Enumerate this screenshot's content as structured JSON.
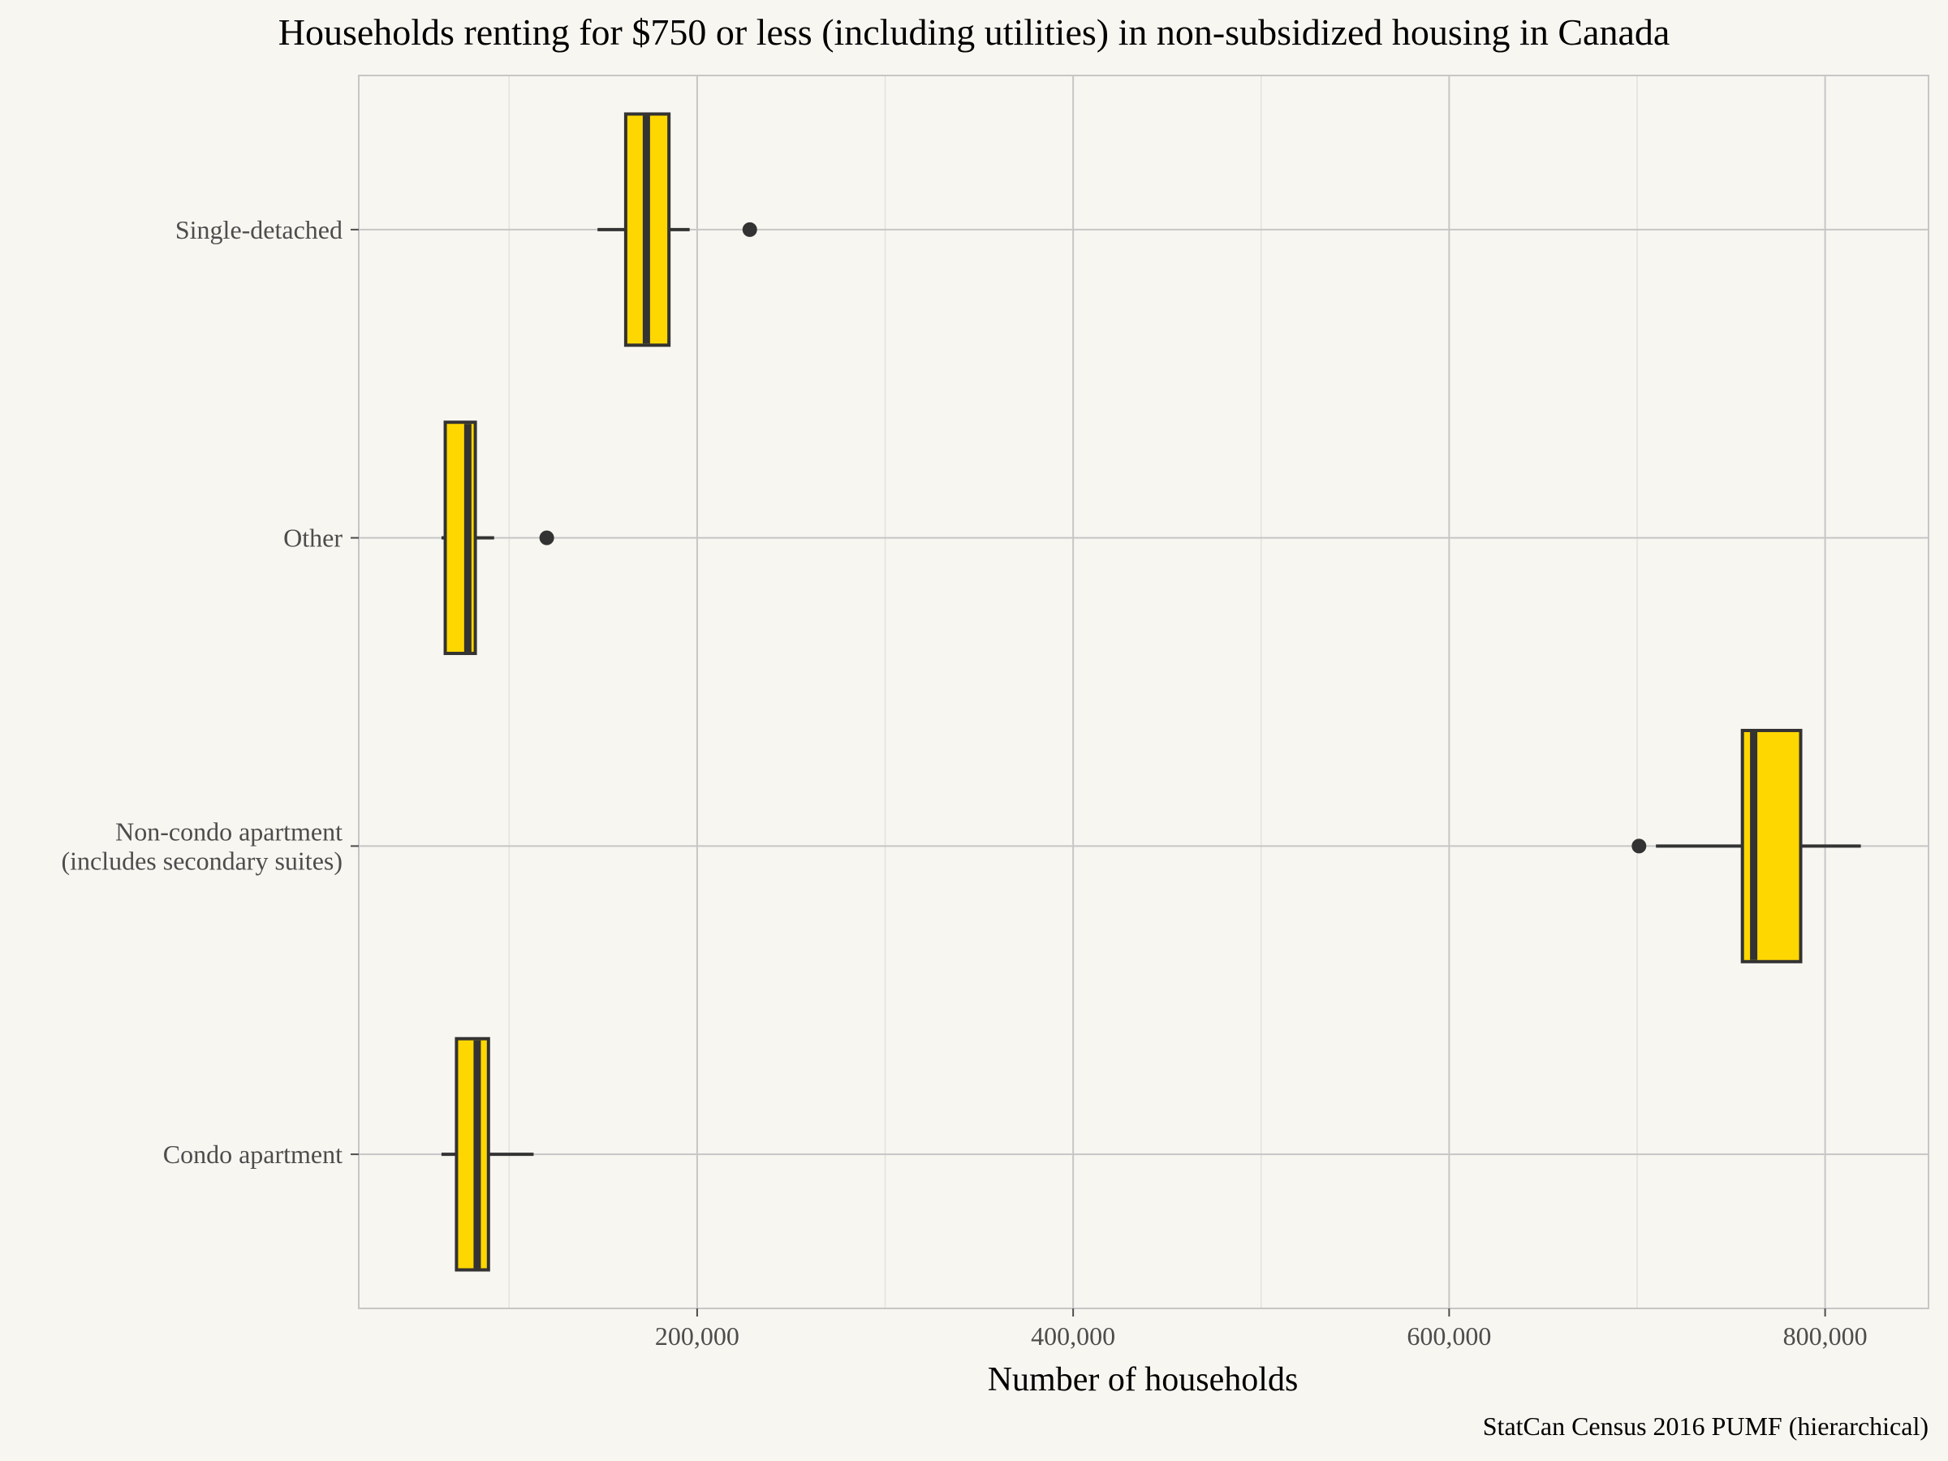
{
  "chart_data": {
    "type": "boxplot",
    "orientation": "horizontal",
    "title": "Households renting for $750 or less (including utilities) in non-subsidized housing in Canada",
    "xlabel": "Number of households",
    "ylabel": "",
    "caption": "StatCan Census 2016 PUMF (hierarchical)",
    "xlim": [
      20000,
      855000
    ],
    "x_ticks": [
      200000,
      400000,
      600000,
      800000
    ],
    "x_tick_labels": [
      "200,000",
      "400,000",
      "600,000",
      "800,000"
    ],
    "x_minor_ticks": [
      100000,
      300000,
      500000,
      700000
    ],
    "grid": true,
    "categories": [
      "Condo apartment",
      "Non-condo apartment\n(includes secondary suites)",
      "Other",
      "Single-detached"
    ],
    "boxes": [
      {
        "category": "Condo apartment",
        "whisker_low": 64000,
        "q1": 72000,
        "median": 83000,
        "q3": 89000,
        "whisker_high": 113000,
        "outliers": []
      },
      {
        "category": "Non-condo apartment\n(includes secondary suites)",
        "whisker_low": 710000,
        "q1": 756000,
        "median": 762000,
        "q3": 787000,
        "whisker_high": 819000,
        "outliers": [
          701000
        ]
      },
      {
        "category": "Other",
        "whisker_low": 64000,
        "q1": 66000,
        "median": 78000,
        "q3": 82000,
        "whisker_high": 92000,
        "outliers": [
          120000
        ]
      },
      {
        "category": "Single-detached",
        "whisker_low": 147000,
        "q1": 162000,
        "median": 173000,
        "q3": 185000,
        "whisker_high": 196000,
        "outliers": [
          228000
        ]
      }
    ],
    "fill_color": "#ffd700",
    "line_color": "#333333",
    "background_color": "#f8f6f1"
  }
}
